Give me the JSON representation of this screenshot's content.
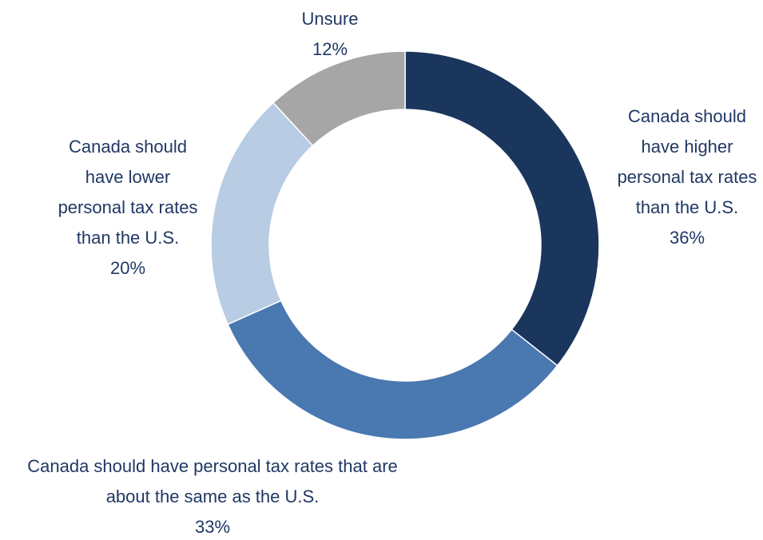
{
  "chart_data": {
    "type": "donut",
    "categories": [
      "Canada should have higher personal tax rates than the U.S.",
      "Canada should have personal tax rates that are about the same as the U.S.",
      "Canada should have lower personal tax rates than the U.S.",
      "Unsure"
    ],
    "values": [
      36,
      33,
      20,
      12
    ],
    "value_labels": [
      "36%",
      "33%",
      "20%",
      "12%"
    ],
    "colors": [
      "#1b365d",
      "#4a78b0",
      "#b8cce4",
      "#a6a6a6"
    ]
  }
}
